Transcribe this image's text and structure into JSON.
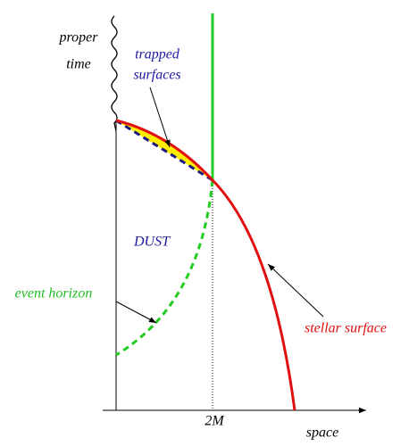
{
  "axes": {
    "vertical_label": [
      "proper",
      "time"
    ],
    "horizontal_label": "space",
    "tick_label": "2M"
  },
  "regions": {
    "trapped_surfaces": [
      "trapped",
      "surfaces"
    ],
    "dust": "DUST"
  },
  "curves": {
    "event_horizon": "event horizon",
    "stellar_surface": "stellar surface"
  }
}
